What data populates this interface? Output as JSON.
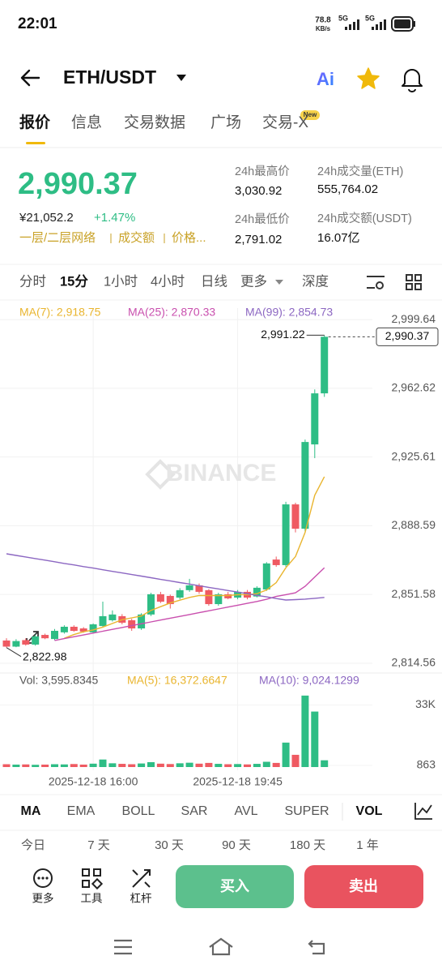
{
  "status": {
    "time": "22:01",
    "speed": "78.8",
    "speed_unit": "KB/s",
    "net1": "5G",
    "net2": "5G"
  },
  "header": {
    "pair": "ETH/USDT",
    "ai": "Ai"
  },
  "tabs": {
    "items": [
      "报价",
      "信息",
      "交易数据",
      "广场",
      "交易-X"
    ],
    "badge": "New"
  },
  "price": {
    "last": "2,990.37",
    "cny": "¥21,052.2",
    "change": "+1.47%",
    "tags": [
      "一层/二层网络",
      "成交额",
      "价格..."
    ]
  },
  "stats": [
    {
      "label": "24h最高价",
      "value": "3,030.92"
    },
    {
      "label": "24h成交量(ETH)",
      "value": "555,764.02"
    },
    {
      "label": "24h最低价",
      "value": "2,791.02"
    },
    {
      "label": "24h成交额(USDT)",
      "value": "16.07亿"
    }
  ],
  "intervals": [
    "分时",
    "15分",
    "1小时",
    "4小时",
    "日线",
    "更多",
    "深度"
  ],
  "chart_data": {
    "type": "candlestick",
    "watermark": "BINANCE",
    "ylim": [
      2809.3,
      3005.8
    ],
    "yticks": [
      {
        "value": 2999.64,
        "label": "2,999.64"
      },
      {
        "value": 2962.62,
        "label": "2,962.62"
      },
      {
        "value": 2925.61,
        "label": "2,925.61"
      },
      {
        "value": 2888.59,
        "label": "2,888.59"
      },
      {
        "value": 2851.58,
        "label": "2,851.58"
      },
      {
        "value": 2814.56,
        "label": "2,814.56"
      }
    ],
    "high_label": "2,991.22",
    "low_label": "2,822.98",
    "last_label": "2,990.37",
    "up_color": "#2ebd85",
    "down_color": "#ef5a62",
    "categories": [
      null,
      null,
      null,
      null,
      null,
      null,
      null,
      null,
      null,
      "2025-12-18 16:00",
      null,
      null,
      null,
      null,
      null,
      null,
      null,
      null,
      null,
      null,
      null,
      null,
      null,
      null,
      "2025-12-18 19:45",
      null,
      null,
      null,
      null,
      null,
      null,
      null,
      null,
      null
    ],
    "candles": [
      {
        "open": 2826.8,
        "close": 2823.5,
        "high": 2828.0,
        "low": 2822.98
      },
      {
        "open": 2823.5,
        "close": 2826.5,
        "high": 2827.5,
        "low": 2823.2
      },
      {
        "open": 2827.0,
        "close": 2824.6,
        "high": 2828.0,
        "low": 2824.0
      },
      {
        "open": 2824.6,
        "close": 2829.0,
        "high": 2830.0,
        "low": 2824.0
      },
      {
        "open": 2829.8,
        "close": 2828.0,
        "high": 2830.5,
        "low": 2827.5
      },
      {
        "open": 2827.6,
        "close": 2832.0,
        "high": 2833.0,
        "low": 2827.0
      },
      {
        "open": 2831.2,
        "close": 2834.2,
        "high": 2835.0,
        "low": 2830.5
      },
      {
        "open": 2834.2,
        "close": 2832.0,
        "high": 2835.0,
        "low": 2831.5
      },
      {
        "open": 2833.3,
        "close": 2831.6,
        "high": 2834.0,
        "low": 2831.0
      },
      {
        "open": 2831.2,
        "close": 2835.5,
        "high": 2836.0,
        "low": 2830.5
      },
      {
        "open": 2834.6,
        "close": 2839.9,
        "high": 2847.7,
        "low": 2834.0
      },
      {
        "open": 2837.7,
        "close": 2840.8,
        "high": 2843.0,
        "low": 2837.0
      },
      {
        "open": 2839.9,
        "close": 2836.4,
        "high": 2841.0,
        "low": 2835.5
      },
      {
        "open": 2837.7,
        "close": 2833.3,
        "high": 2838.5,
        "low": 2832.0
      },
      {
        "open": 2833.3,
        "close": 2840.8,
        "high": 2841.5,
        "low": 2832.5
      },
      {
        "open": 2840.8,
        "close": 2851.7,
        "high": 2852.5,
        "low": 2840.0
      },
      {
        "open": 2851.7,
        "close": 2847.7,
        "high": 2853.0,
        "low": 2847.0
      },
      {
        "open": 2850.8,
        "close": 2846.4,
        "high": 2851.5,
        "low": 2844.0
      },
      {
        "open": 2849.9,
        "close": 2853.9,
        "high": 2855.0,
        "low": 2849.0
      },
      {
        "open": 2853.9,
        "close": 2856.5,
        "high": 2860.0,
        "low": 2853.0
      },
      {
        "open": 2856.5,
        "close": 2853.0,
        "high": 2857.5,
        "low": 2852.0
      },
      {
        "open": 2853.9,
        "close": 2846.4,
        "high": 2854.5,
        "low": 2845.5
      },
      {
        "open": 2846.4,
        "close": 2851.7,
        "high": 2852.5,
        "low": 2845.5
      },
      {
        "open": 2851.7,
        "close": 2849.5,
        "high": 2853.0,
        "low": 2849.0
      },
      {
        "open": 2849.9,
        "close": 2853.0,
        "high": 2854.0,
        "low": 2849.0
      },
      {
        "open": 2853.0,
        "close": 2849.9,
        "high": 2854.0,
        "low": 2849.0
      },
      {
        "open": 2850.5,
        "close": 2855.2,
        "high": 2856.0,
        "low": 2850.0
      },
      {
        "open": 2854.3,
        "close": 2868.3,
        "high": 2869.0,
        "low": 2853.5
      },
      {
        "open": 2870.4,
        "close": 2867.4,
        "high": 2872.0,
        "low": 2866.5
      },
      {
        "open": 2867.4,
        "close": 2900.1,
        "high": 2901.5,
        "low": 2866.5
      },
      {
        "open": 2900.1,
        "close": 2887.0,
        "high": 2901.0,
        "low": 2885.0
      },
      {
        "open": 2887.0,
        "close": 2933.7,
        "high": 2935.0,
        "low": 2885.5
      },
      {
        "open": 2932.4,
        "close": 2959.9,
        "high": 2962.0,
        "low": 2925.0
      },
      {
        "open": 2959.9,
        "close": 2990.37,
        "high": 2991.22,
        "low": 2958.0
      }
    ],
    "series": [
      {
        "name": "MA(7): 2,918.75",
        "color": "#e9b52f",
        "values": [
          null,
          null,
          null,
          null,
          null,
          null,
          2828.0,
          2830.0,
          2831.5,
          2832.5,
          2834.0,
          2836.0,
          2838.0,
          2839.0,
          2840.0,
          2843.0,
          2845.0,
          2847.0,
          2848.5,
          2850.0,
          2851.0,
          2851.0,
          2851.0,
          2851.0,
          2851.5,
          2851.5,
          2852.0,
          2854.0,
          2858.0,
          2866.0,
          2872.0,
          2885.0,
          2905.0,
          2915.0
        ]
      },
      {
        "name": "MA(25): 2,870.33",
        "color": "#c94fae",
        "values": [
          null,
          null,
          null,
          null,
          null,
          2826.8,
          2827.8,
          2828.8,
          2829.8,
          2830.8,
          2831.8,
          2832.8,
          2833.8,
          2834.8,
          2835.8,
          2836.8,
          2837.8,
          2838.8,
          2839.8,
          2840.8,
          2841.8,
          2842.8,
          2843.8,
          2844.8,
          2845.8,
          2846.8,
          2847.8,
          2849.0,
          2850.5,
          2851.5,
          2852.5,
          2856.0,
          2861.0,
          2866.0
        ]
      },
      {
        "name": "MA(99): 2,854.73",
        "color": "#8c67c2",
        "values": [
          2873.5,
          2872.6,
          2871.8,
          2870.9,
          2870.1,
          2869.2,
          2868.3,
          2867.5,
          2866.6,
          2865.8,
          2864.9,
          2864.0,
          2863.2,
          2862.3,
          2861.5,
          2860.6,
          2859.7,
          2858.9,
          2858.0,
          2857.2,
          2856.3,
          2855.4,
          2854.6,
          2853.7,
          2852.9,
          2852.0,
          2851.1,
          2850.3,
          2849.4,
          2848.6,
          2848.8,
          2849.1,
          2849.5,
          2850.0
        ]
      }
    ],
    "volume": {
      "label": "Vol: 3,595.8345",
      "ma": [
        {
          "name": "MA(5): 16,372.6647",
          "color": "#e9b52f"
        },
        {
          "name": "MA(10): 9,024.1299",
          "color": "#8c67c2"
        }
      ],
      "ylim": [
        0,
        38800
      ],
      "yticks": [
        {
          "value": 33000,
          "label": "33K"
        },
        863
      ],
      "values": [
        1500,
        1300,
        1400,
        1200,
        1300,
        1500,
        1400,
        1600,
        1300,
        1800,
        4000,
        2000,
        1700,
        1500,
        1900,
        2600,
        1800,
        1600,
        2000,
        2300,
        1800,
        2200,
        1700,
        1500,
        1600,
        1400,
        1700,
        2800,
        2200,
        13000,
        6500,
        38000,
        29500,
        3595.8345
      ]
    }
  },
  "indicators": [
    "MA",
    "EMA",
    "BOLL",
    "SAR",
    "AVL",
    "SUPER",
    "VOL"
  ],
  "periods": [
    "今日",
    "7 天",
    "30 天",
    "90 天",
    "180 天",
    "1 年"
  ],
  "actions": [
    "更多",
    "工具",
    "杠杆"
  ],
  "buy": "买入",
  "sell": "卖出"
}
